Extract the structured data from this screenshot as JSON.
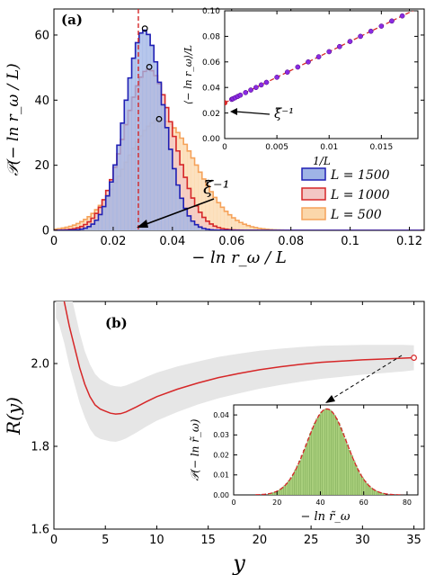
{
  "panel_a": {
    "label": "(a)",
    "xlabel": "− ln r_ω / L",
    "ylabel": "𝒫(− ln r_ω / L)",
    "xi_label": "ξ̃⁻¹",
    "legend": [
      "L = 1500",
      "L = 1000",
      "L = 500"
    ],
    "inset": {
      "xlabel": "1/L",
      "ylabel": "⟨− ln r_ω⟩/L",
      "xi_label": "ξ̃⁻¹"
    }
  },
  "panel_b": {
    "label": "(b)",
    "xlabel": "y",
    "ylabel": "R(y)",
    "inset": {
      "xlabel": "− ln r̃_ω",
      "ylabel": "𝒫(− ln r̃_ω)"
    }
  },
  "colors": {
    "blue_line": "#1f1fb4",
    "blue_fill": "#9fb4e6",
    "red_line": "#d62728",
    "red_fill": "#f3c7c4",
    "orange_line": "#f5a25a",
    "orange_fill": "#fbd7aa",
    "band": "#e6e6e6",
    "green_fill": "#a9cf7c",
    "inset_points": "#8a2be2"
  },
  "chart_data": [
    {
      "type": "area",
      "title": "",
      "xlabel": "− ln r_ω / L",
      "ylabel": "𝒫(− ln r_ω / L)",
      "xlim": [
        0,
        0.125
      ],
      "ylim": [
        0,
        68
      ],
      "xticks": [
        "0",
        "0.02",
        "0.04",
        "0.06",
        "0.08",
        "0.1",
        "0.12"
      ],
      "yticks": [
        "0",
        "20",
        "40",
        "60"
      ],
      "xi_inverse": 0.0285,
      "legend_position": "center-right",
      "series": [
        {
          "name": "L = 1500",
          "mean": 0.0305,
          "sigma": 0.0066,
          "peak": 61.5,
          "marker": [
            0.0307,
            62
          ]
        },
        {
          "name": "L = 1000",
          "mean": 0.032,
          "sigma": 0.0083,
          "peak": 49.5,
          "marker": [
            0.0322,
            50.2
          ]
        },
        {
          "name": "L = 500",
          "mean": 0.036,
          "sigma": 0.0118,
          "peak": 34,
          "marker": [
            0.0355,
            34.2
          ]
        }
      ]
    },
    {
      "type": "scatter",
      "title": "",
      "xlabel": "1/L",
      "ylabel": "⟨− ln r_ω⟩/L",
      "xlim": [
        0,
        0.0185
      ],
      "ylim": [
        0,
        0.1
      ],
      "xticks": [
        "0",
        "0.005",
        "0.01",
        "0.015"
      ],
      "yticks": [
        "0.00",
        "0.02",
        "0.04",
        "0.06",
        "0.08",
        "0.10"
      ],
      "fit": {
        "intercept": 0.028,
        "slope": 4.0
      },
      "x": [
        0.00067,
        0.0008,
        0.001,
        0.00125,
        0.0015,
        0.002,
        0.0025,
        0.003,
        0.0035,
        0.004,
        0.005,
        0.006,
        0.007,
        0.008,
        0.009,
        0.01,
        0.011,
        0.012,
        0.013,
        0.014,
        0.015,
        0.016,
        0.017
      ],
      "y": [
        0.0307,
        0.0312,
        0.032,
        0.033,
        0.034,
        0.036,
        0.038,
        0.04,
        0.042,
        0.044,
        0.048,
        0.052,
        0.056,
        0.06,
        0.064,
        0.068,
        0.072,
        0.076,
        0.08,
        0.084,
        0.088,
        0.092,
        0.096
      ]
    },
    {
      "type": "line",
      "title": "",
      "xlabel": "y",
      "ylabel": "R(y)",
      "xlim": [
        0,
        36
      ],
      "ylim": [
        1.6,
        2.15
      ],
      "xticks": [
        "0",
        "5",
        "10",
        "15",
        "20",
        "25",
        "30",
        "35"
      ],
      "yticks": [
        "1.6",
        "1.8",
        "2.0"
      ],
      "x": [
        0.2,
        0.5,
        1,
        1.5,
        2,
        2.5,
        3,
        3.5,
        4,
        4.5,
        5,
        5.5,
        6,
        6.5,
        7,
        8,
        9,
        10,
        12,
        14,
        16,
        18,
        20,
        22,
        24,
        26,
        28,
        30,
        32,
        34,
        35
      ],
      "y": [
        2.22,
        2.2,
        2.15,
        2.09,
        2.04,
        1.99,
        1.95,
        1.92,
        1.9,
        1.89,
        1.885,
        1.88,
        1.878,
        1.879,
        1.883,
        1.895,
        1.908,
        1.92,
        1.938,
        1.953,
        1.966,
        1.976,
        1.985,
        1.992,
        1.998,
        2.003,
        2.006,
        2.009,
        2.011,
        2.013,
        2.014
      ],
      "band_halfwidth": [
        0.11,
        0.105,
        0.1,
        0.095,
        0.09,
        0.085,
        0.08,
        0.078,
        0.075,
        0.072,
        0.07,
        0.068,
        0.067,
        0.065,
        0.064,
        0.062,
        0.06,
        0.058,
        0.055,
        0.052,
        0.05,
        0.048,
        0.046,
        0.044,
        0.042,
        0.04,
        0.038,
        0.036,
        0.034,
        0.032,
        0.03
      ],
      "marker": [
        35,
        2.014
      ]
    },
    {
      "type": "bar",
      "title": "",
      "xlabel": "− ln r̃_ω",
      "ylabel": "𝒫(− ln r̃_ω)",
      "xlim": [
        0,
        85
      ],
      "ylim": [
        0,
        0.045
      ],
      "xticks": [
        "0",
        "20",
        "40",
        "60",
        "80"
      ],
      "yticks": [
        "0.00",
        "0.01",
        "0.02",
        "0.03",
        "0.04"
      ],
      "distribution": {
        "mean": 43,
        "sigma": 9.2,
        "peak": 0.043
      }
    }
  ]
}
